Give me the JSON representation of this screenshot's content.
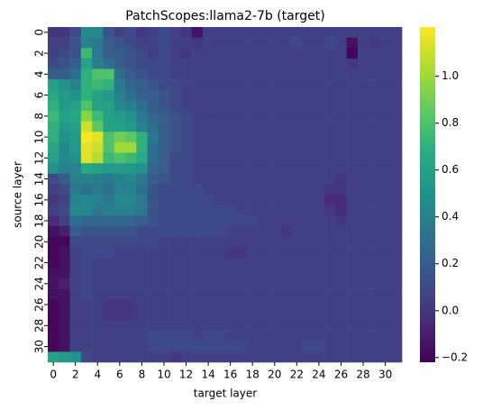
{
  "chart_data": {
    "type": "heatmap",
    "title": "PatchScopes:llama2-7b (target)",
    "x_label": "target layer",
    "y_label": "source layer",
    "xlim": [
      0,
      32
    ],
    "ylim": [
      0,
      32
    ],
    "xticks": [
      0,
      2,
      4,
      6,
      8,
      10,
      12,
      14,
      16,
      18,
      20,
      22,
      24,
      26,
      28,
      30
    ],
    "yticks": [
      0,
      2,
      4,
      6,
      8,
      10,
      12,
      14,
      16,
      18,
      20,
      22,
      24,
      26,
      28,
      30
    ],
    "colormap": "viridis",
    "colorbar": {
      "lim": [
        -0.22,
        1.21
      ],
      "ticks": [
        {
          "value": -0.2,
          "label": "−0.2"
        },
        {
          "value": 0,
          "label": "0.0"
        },
        0.2,
        0.4,
        0.6,
        0.8,
        {
          "value": 1,
          "label": "1.0"
        }
      ]
    },
    "z": [
      [
        0,
        0,
        0.1,
        0.45,
        0.45,
        0.15,
        0.05,
        0.1,
        0,
        0.05,
        0.1,
        0.05,
        0,
        -0.15,
        0.05,
        0.05,
        0.05,
        0.05,
        0.05,
        0.05,
        0.05,
        0.05,
        0.05,
        0.05,
        0.05,
        0.05,
        0.05,
        0.05,
        0.05,
        0.05,
        0.05,
        0.05
      ],
      [
        0.05,
        0.05,
        0.15,
        0.4,
        0.35,
        0.2,
        0.15,
        0.1,
        0.05,
        0.05,
        0.1,
        0.05,
        0.05,
        0,
        0.05,
        0.05,
        0.05,
        0.05,
        0.05,
        0.05,
        0.05,
        0.05,
        0.1,
        0.05,
        0.05,
        0.1,
        0.05,
        -0.15,
        0.05,
        0,
        0.05,
        0.05
      ],
      [
        0.05,
        0.1,
        0.15,
        0.75,
        0.35,
        0.2,
        0.2,
        0.15,
        0.1,
        0.05,
        0.1,
        0.05,
        0,
        0.05,
        0.05,
        0.05,
        0.05,
        0.05,
        0.05,
        0.05,
        0.05,
        0.05,
        0.05,
        0.05,
        0.05,
        0.05,
        0.05,
        -0.2,
        0.05,
        0.05,
        0.05,
        0.05
      ],
      [
        0.1,
        0.15,
        0.2,
        0.6,
        0.4,
        0.3,
        0.2,
        0.15,
        0.1,
        0.1,
        0.1,
        0.05,
        0.05,
        0.05,
        0.05,
        0.05,
        0.05,
        0.05,
        0.05,
        0.05,
        0.05,
        0.05,
        0.05,
        0.05,
        0.05,
        0.05,
        0.05,
        0,
        0.05,
        0.05,
        0.05,
        0.05
      ],
      [
        0.2,
        0.2,
        0.3,
        0.7,
        0.8,
        0.8,
        0.3,
        0.2,
        0.15,
        0.1,
        0.1,
        0.05,
        0.05,
        0.05,
        0.05,
        0.05,
        0.05,
        0.05,
        0.05,
        0.05,
        0.05,
        0.05,
        0.05,
        0.05,
        0.05,
        0.05,
        0.05,
        0.05,
        0.05,
        0.05,
        0.05,
        0.05
      ],
      [
        0.6,
        0.5,
        0.4,
        0.7,
        0.75,
        0.7,
        0.35,
        0.25,
        0.2,
        0.15,
        0.1,
        0.1,
        0.05,
        0.05,
        0.05,
        0.05,
        0.05,
        0.05,
        0.05,
        0.05,
        0.05,
        0.05,
        0.05,
        0.05,
        0.05,
        0.05,
        0.05,
        0.05,
        0.05,
        0.05,
        0.05,
        0.05
      ],
      [
        0.65,
        0.55,
        0.5,
        0.7,
        0.6,
        0.55,
        0.4,
        0.3,
        0.2,
        0.2,
        0.15,
        0.1,
        0.05,
        0.05,
        0.05,
        0.05,
        0.05,
        0.05,
        0.05,
        0.05,
        0.05,
        0.05,
        0.05,
        0.05,
        0.05,
        0.05,
        0.05,
        0.05,
        0.05,
        0.05,
        0.05,
        0.05
      ],
      [
        0.7,
        0.55,
        0.6,
        0.8,
        0.6,
        0.6,
        0.45,
        0.4,
        0.3,
        0.2,
        0.15,
        0.1,
        0.05,
        0.05,
        0.05,
        0.05,
        0.05,
        0.05,
        0.05,
        0.05,
        0.05,
        0.05,
        0.05,
        0.05,
        0.05,
        0.05,
        0.05,
        0.05,
        0.05,
        0.05,
        0.05,
        0.05
      ],
      [
        0.75,
        0.6,
        0.65,
        0.95,
        0.75,
        0.6,
        0.55,
        0.5,
        0.35,
        0.25,
        0.2,
        0.15,
        0.1,
        0.05,
        0.05,
        0.05,
        0.05,
        0.05,
        0.05,
        0.05,
        0.05,
        0.05,
        0.05,
        0.05,
        0.05,
        0.05,
        0.05,
        0.05,
        0.05,
        0.05,
        0.05,
        0.05
      ],
      [
        0.7,
        0.55,
        0.6,
        1.1,
        0.85,
        0.6,
        0.6,
        0.55,
        0.4,
        0.3,
        0.2,
        0.15,
        0.1,
        0.05,
        0.05,
        0.05,
        0.05,
        0.05,
        0.05,
        0.05,
        0.05,
        0.05,
        0.05,
        0.05,
        0.05,
        0.05,
        0.05,
        0.05,
        0.05,
        0.05,
        0.05,
        0.05
      ],
      [
        0.7,
        0.5,
        0.55,
        1.2,
        1.15,
        0.8,
        0.9,
        0.85,
        0.7,
        0.35,
        0.2,
        0.15,
        0.1,
        0.05,
        0.05,
        0.05,
        0.05,
        0.05,
        0.05,
        0.05,
        0.05,
        0.05,
        0.05,
        0.05,
        0.05,
        0.05,
        0.05,
        0.05,
        0.05,
        0.05,
        0.05,
        0.05
      ],
      [
        0.65,
        0.45,
        0.55,
        1.15,
        1.1,
        0.8,
        1,
        1,
        0.7,
        0.3,
        0.2,
        0.15,
        0.1,
        0.05,
        0.05,
        0.05,
        0.05,
        0.05,
        0.05,
        0.05,
        0.05,
        0.05,
        0.05,
        0.05,
        0.05,
        0.05,
        0.05,
        0.05,
        0.05,
        0.05,
        0.05,
        0.05
      ],
      [
        0.6,
        0.45,
        0.5,
        1.15,
        1.05,
        0.75,
        0.8,
        0.75,
        0.65,
        0.3,
        0.2,
        0.1,
        0.1,
        0.05,
        0.05,
        0.05,
        0.05,
        0.05,
        0.05,
        0.05,
        0.05,
        0.05,
        0.05,
        0.05,
        0.05,
        0.05,
        0.05,
        0.05,
        0.05,
        0.05,
        0.05,
        0.05
      ],
      [
        0.5,
        0.4,
        0.4,
        0.65,
        0.6,
        0.55,
        0.55,
        0.55,
        0.5,
        0.25,
        0.2,
        0.1,
        0.1,
        0.05,
        0.05,
        0.05,
        0.05,
        0.05,
        0.05,
        0.05,
        0.05,
        0.05,
        0.05,
        0.05,
        0.05,
        0.05,
        0.05,
        0.05,
        0.05,
        0.05,
        0.05,
        0.05
      ],
      [
        0.1,
        0.2,
        0.4,
        0.4,
        0.4,
        0.35,
        0.4,
        0.45,
        0.35,
        0.2,
        0.15,
        0.1,
        0.1,
        0.05,
        0.05,
        0.05,
        0.05,
        0.05,
        0.05,
        0.05,
        0.05,
        0.05,
        0.05,
        0.05,
        0.05,
        0.05,
        0,
        0.05,
        0.05,
        0.05,
        0.05,
        0.05
      ],
      [
        0.05,
        0.1,
        0.35,
        0.3,
        0.35,
        0.3,
        0.4,
        0.4,
        0.3,
        0.15,
        0.1,
        0.1,
        0.1,
        0.1,
        0.05,
        0.05,
        0.05,
        0.05,
        0.05,
        0.05,
        0.05,
        0.05,
        0.05,
        0.05,
        0.05,
        0,
        0,
        0.05,
        0.05,
        0.05,
        0.05,
        0.05
      ],
      [
        0,
        0.05,
        0.4,
        0.45,
        0.4,
        0.35,
        0.45,
        0.45,
        0.35,
        0.15,
        0.1,
        0.1,
        0.1,
        0.1,
        0.1,
        0.05,
        0.05,
        0.05,
        0.05,
        0.05,
        0.05,
        0.05,
        0.05,
        0.05,
        0.05,
        -0.05,
        -0.05,
        0.05,
        0.05,
        0.05,
        0.05,
        0.05
      ],
      [
        0.05,
        0.1,
        0.45,
        0.45,
        0.35,
        0.4,
        0.4,
        0.4,
        0.35,
        0.15,
        0.1,
        0.1,
        0.1,
        0.1,
        0.1,
        0.1,
        0.1,
        0.05,
        0.05,
        0.05,
        0.05,
        0.05,
        0.05,
        0.05,
        0.05,
        0,
        -0.05,
        0.05,
        0.05,
        0.05,
        0.05,
        0.05
      ],
      [
        -0.05,
        0.05,
        0.3,
        0.25,
        0.25,
        0.25,
        0.25,
        0.25,
        0.2,
        0.15,
        0.1,
        0.1,
        0.1,
        0.1,
        0.1,
        0.1,
        0.1,
        0.1,
        0.1,
        0.05,
        0.05,
        0.05,
        0.05,
        0.05,
        0.05,
        0.05,
        0,
        0.05,
        0.05,
        0.05,
        0.05,
        0.05
      ],
      [
        -0.15,
        -0.1,
        0.2,
        0.15,
        0.15,
        0.15,
        0.15,
        0.15,
        0.1,
        0.1,
        0.1,
        0.1,
        0.1,
        0.1,
        0.1,
        0.1,
        0.05,
        0.05,
        0.05,
        0.05,
        0.05,
        0,
        0.05,
        0.05,
        0.05,
        0.05,
        0.05,
        0.05,
        0.05,
        0.05,
        0.05,
        0.05
      ],
      [
        -0.2,
        -0.2,
        0.1,
        0.1,
        0.1,
        0.1,
        0.1,
        0.1,
        0.1,
        0.1,
        0.05,
        0.05,
        0.05,
        0.05,
        0.05,
        0.05,
        0.05,
        0.05,
        0.05,
        0.05,
        0.05,
        0.05,
        0.05,
        0.05,
        0.05,
        0.05,
        0.05,
        0.05,
        0.05,
        0.05,
        0.05,
        0.05
      ],
      [
        -0.2,
        -0.15,
        0.05,
        0.1,
        0.1,
        0.1,
        0.05,
        0.05,
        0.05,
        0.05,
        0.05,
        0.05,
        0.05,
        0.05,
        0.05,
        0.05,
        0,
        0,
        0.05,
        0.05,
        0.05,
        0.05,
        0.05,
        0.05,
        0.05,
        0.05,
        0.05,
        0.05,
        0.05,
        0.05,
        0.05,
        0.05
      ],
      [
        -0.2,
        -0.15,
        0.05,
        0.1,
        0.05,
        0.05,
        0.05,
        0.05,
        0.05,
        0.05,
        0.05,
        0.05,
        0.05,
        0.05,
        0.05,
        0.05,
        0.05,
        0.05,
        0.05,
        0.05,
        0.05,
        0.05,
        0.05,
        0.05,
        0.05,
        0.05,
        0.05,
        0.05,
        0.05,
        0.05,
        0.05,
        0.05
      ],
      [
        -0.15,
        -0.15,
        0.05,
        0.1,
        0.05,
        0.05,
        0.05,
        0.05,
        0.05,
        0.05,
        0.05,
        0.05,
        0.05,
        0.05,
        0.05,
        0.05,
        0.05,
        0.05,
        0.05,
        0.05,
        0.05,
        0.05,
        0.05,
        0.05,
        0.05,
        0.05,
        0.05,
        0.05,
        0.05,
        0.05,
        0.05,
        0.05
      ],
      [
        -0.15,
        -0.1,
        0.05,
        0.1,
        0.05,
        0.05,
        0.05,
        0.05,
        0.05,
        0.05,
        0.05,
        0.05,
        0.05,
        0.05,
        0.05,
        0.05,
        0.05,
        0.05,
        0.05,
        0.05,
        0.05,
        0.05,
        0.05,
        0.05,
        0.05,
        0.05,
        0.05,
        0.05,
        0.05,
        0.05,
        0.05,
        0.05
      ],
      [
        -0.15,
        -0.15,
        0.05,
        0.1,
        0.05,
        0.05,
        0.05,
        0.05,
        0.05,
        0.05,
        0.05,
        0.05,
        0.05,
        0.05,
        0.05,
        0.05,
        0.05,
        0.05,
        0.05,
        0.05,
        0.05,
        0.05,
        0.05,
        0.05,
        0.05,
        0.05,
        0.05,
        0.05,
        0.05,
        0.05,
        0.05,
        0.05
      ],
      [
        -0.2,
        -0.15,
        0.05,
        0.05,
        0.05,
        0,
        0,
        0,
        0.05,
        0.05,
        0.05,
        0.05,
        0.05,
        0.05,
        0.05,
        0.05,
        0.05,
        0.05,
        0.05,
        0.05,
        0.05,
        0.05,
        0.05,
        0.05,
        0.05,
        0.05,
        0.05,
        0.05,
        0.05,
        0.05,
        0.05,
        0.05
      ],
      [
        -0.2,
        -0.15,
        0.05,
        0.05,
        0.05,
        0,
        0,
        0,
        0.05,
        0.05,
        0.05,
        0.05,
        0.05,
        0.05,
        0.05,
        0.05,
        0.05,
        0.05,
        0.05,
        0.05,
        0.05,
        0.05,
        0.05,
        0.05,
        0.05,
        0.05,
        0.05,
        0.05,
        0.05,
        0.05,
        0.05,
        0.05
      ],
      [
        -0.2,
        -0.15,
        0.05,
        0.05,
        0.05,
        0.05,
        0.05,
        0.05,
        0.05,
        0.05,
        0.05,
        0.05,
        0.05,
        0.05,
        0.05,
        0.05,
        0.05,
        0.05,
        0.05,
        0.05,
        0.05,
        0.05,
        0.05,
        0.05,
        0.05,
        0.05,
        0.05,
        0.05,
        0.05,
        0.05,
        0.05,
        0.05
      ],
      [
        -0.2,
        -0.15,
        0.05,
        0.05,
        0.05,
        0.05,
        0.05,
        0.05,
        0.05,
        0.1,
        0.1,
        0.1,
        0.1,
        0.05,
        0.1,
        0.1,
        0.05,
        0.05,
        0.05,
        0.05,
        0.05,
        0.05,
        0.05,
        0.05,
        0.05,
        0.05,
        0.05,
        0.05,
        0.05,
        0.05,
        0.05,
        0.05
      ],
      [
        -0.2,
        -0.15,
        0.05,
        0.05,
        0.05,
        0.05,
        0.05,
        0.05,
        0.05,
        0.1,
        0.1,
        0.1,
        0.1,
        0.1,
        0.1,
        0.1,
        0.1,
        0.1,
        0.05,
        0.05,
        0.05,
        0.05,
        0.05,
        0.1,
        0.1,
        0.05,
        0.05,
        0.05,
        0.05,
        0.05,
        0.05,
        0.05
      ],
      [
        0.6,
        0.55,
        0.5,
        0.1,
        0.05,
        0.05,
        0.05,
        0.05,
        0.05,
        0.05,
        0.05,
        0,
        0.05,
        0.05,
        0.05,
        0.05,
        0.05,
        0.05,
        0.05,
        0.05,
        0.05,
        0.05,
        0.05,
        0.05,
        0.05,
        0.05,
        0.05,
        0.05,
        0.05,
        0.05,
        0.05,
        0.05
      ]
    ]
  }
}
